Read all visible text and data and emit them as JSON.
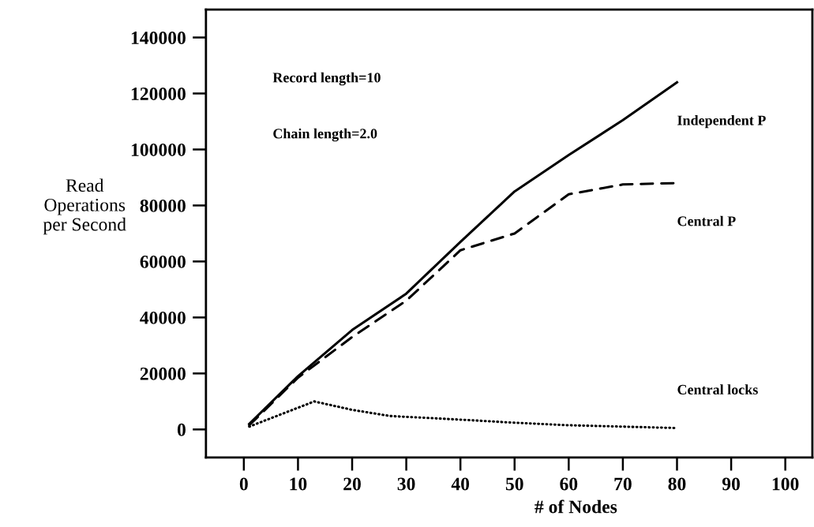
{
  "chart_data": {
    "type": "line",
    "xlabel": "# of Nodes",
    "ylabel": "Read\nOperations\nper Second",
    "annotations": [
      "Record length=10",
      "Chain length=2.0"
    ],
    "xlim": [
      -7,
      105
    ],
    "xticks": [
      0,
      10,
      20,
      30,
      40,
      50,
      60,
      70,
      80,
      90,
      100
    ],
    "ylim": [
      -10000,
      150000
    ],
    "yticks": [
      0,
      20000,
      40000,
      60000,
      80000,
      100000,
      120000,
      140000
    ],
    "grid": false,
    "legend": false,
    "marker": "none",
    "series": [
      {
        "name": "Independent P",
        "color": "#000000",
        "line_style": "solid",
        "x": [
          1,
          10,
          20,
          30,
          40,
          50,
          60,
          70,
          80
        ],
        "values": [
          2000,
          19000,
          35500,
          48500,
          67000,
          85000,
          98000,
          110500,
          124000
        ]
      },
      {
        "name": "Central P",
        "color": "#000000",
        "line_style": "dashed",
        "x": [
          1,
          10,
          20,
          30,
          40,
          50,
          60,
          70,
          80
        ],
        "values": [
          1500,
          18500,
          33000,
          46000,
          64000,
          70000,
          84000,
          87500,
          88000
        ]
      },
      {
        "name": "Central locks",
        "color": "#000000",
        "line_style": "dotted",
        "x": [
          1,
          13,
          20,
          27,
          40,
          50,
          60,
          70,
          80
        ],
        "values": [
          1000,
          10000,
          7000,
          4800,
          3500,
          2400,
          1500,
          1000,
          500
        ]
      }
    ]
  }
}
